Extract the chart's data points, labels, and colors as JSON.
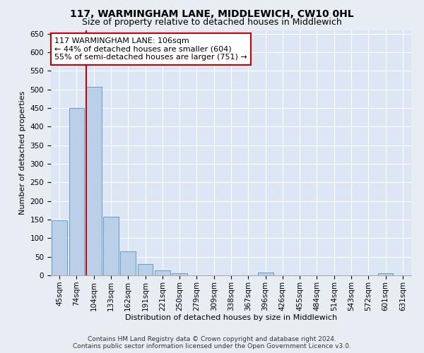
{
  "title": "117, WARMINGHAM LANE, MIDDLEWICH, CW10 0HL",
  "subtitle": "Size of property relative to detached houses in Middlewich",
  "xlabel": "Distribution of detached houses by size in Middlewich",
  "ylabel": "Number of detached properties",
  "footer_line1": "Contains HM Land Registry data © Crown copyright and database right 2024.",
  "footer_line2": "Contains public sector information licensed under the Open Government Licence v3.0.",
  "bar_labels": [
    "45sqm",
    "74sqm",
    "104sqm",
    "133sqm",
    "162sqm",
    "191sqm",
    "221sqm",
    "250sqm",
    "279sqm",
    "309sqm",
    "338sqm",
    "367sqm",
    "396sqm",
    "426sqm",
    "455sqm",
    "484sqm",
    "514sqm",
    "543sqm",
    "572sqm",
    "601sqm",
    "631sqm"
  ],
  "bar_values": [
    148,
    450,
    507,
    158,
    65,
    30,
    13,
    6,
    0,
    0,
    0,
    0,
    7,
    0,
    0,
    0,
    0,
    0,
    0,
    5,
    0
  ],
  "bar_color": "#bad0e8",
  "bar_edge_color": "#6699cc",
  "vline_color": "#cc0000",
  "annotation_text": "117 WARMINGHAM LANE: 106sqm\n← 44% of detached houses are smaller (604)\n55% of semi-detached houses are larger (751) →",
  "annotation_box_color": "#ffffff",
  "annotation_box_edge_color": "#cc0000",
  "ylim": [
    0,
    660
  ],
  "yticks": [
    0,
    50,
    100,
    150,
    200,
    250,
    300,
    350,
    400,
    450,
    500,
    550,
    600,
    650
  ],
  "bg_color": "#e8edf4",
  "plot_bg_color": "#dce6f5",
  "grid_color": "#ffffff",
  "title_fontsize": 10,
  "subtitle_fontsize": 9,
  "axis_label_fontsize": 8,
  "tick_fontsize": 7.5,
  "annotation_fontsize": 8
}
